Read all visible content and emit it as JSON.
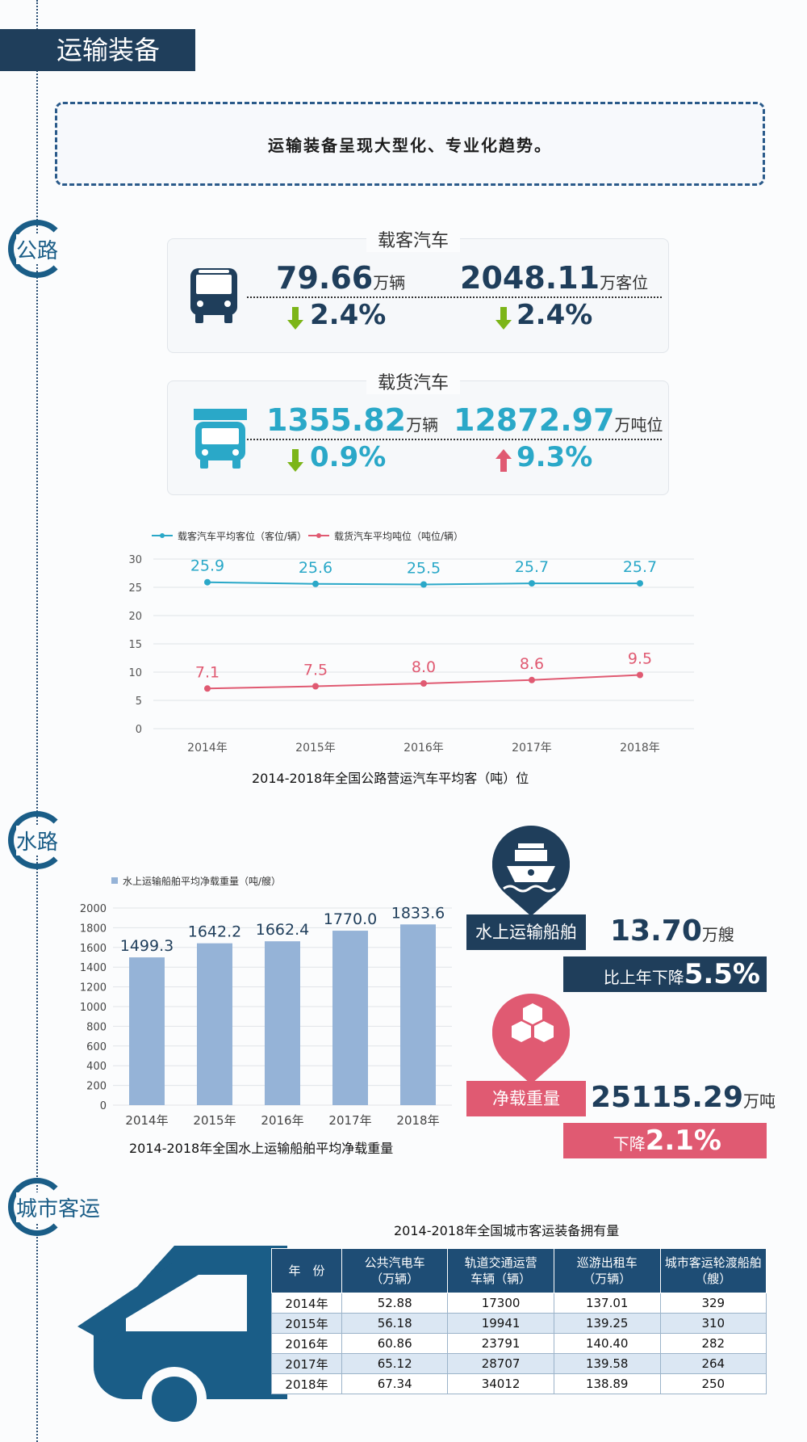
{
  "header": {
    "title": "运输装备"
  },
  "intro": "运输装备呈现大型化、专业化趋势。",
  "sections": {
    "road": "公路",
    "water": "水路",
    "city": "城市客运"
  },
  "bus_card": {
    "title": "载客汽车",
    "v1": "79.66",
    "u1": "万辆",
    "p1": "2.4%",
    "v2": "2048.11",
    "u2": "万客位",
    "p2": "2.4%"
  },
  "truck_card": {
    "title": "载货汽车",
    "v1": "1355.82",
    "u1": "万辆",
    "p1": "0.9%",
    "v2": "12872.97",
    "u2": "万吨位",
    "p2": "9.3%"
  },
  "ship_stats": {
    "label": "水上运输船舶",
    "value": "13.70",
    "unit": "万艘",
    "change_prefix": "比上年下降",
    "change": "5.5%"
  },
  "load_stats": {
    "label": "净载重量",
    "value": "25115.29",
    "unit": "万吨",
    "change_prefix": "下降",
    "change": "2.1%"
  },
  "colors": {
    "navy": "#1f3e5b",
    "teal": "#2aa8c8",
    "red": "#e05a72",
    "green": "#7cb518",
    "bar": "#95b3d7"
  },
  "chart_data": [
    {
      "type": "line",
      "caption": "2014-2018年全国公路营运汽车平均客（吨）位",
      "categories": [
        "2014年",
        "2015年",
        "2016年",
        "2017年",
        "2018年"
      ],
      "series": [
        {
          "name": "载客汽车平均客位（客位/辆）",
          "values": [
            25.9,
            25.6,
            25.5,
            25.7,
            25.7
          ],
          "color": "#2aa8c8"
        },
        {
          "name": "载货汽车平均吨位（吨位/辆）",
          "values": [
            7.1,
            7.5,
            8.0,
            8.6,
            9.5
          ],
          "color": "#e05a72"
        }
      ],
      "ylim": [
        0,
        30
      ],
      "yticks": [
        0,
        5,
        10,
        15,
        20,
        25,
        30
      ],
      "labels": {
        "s0": [
          "25.9",
          "25.6",
          "25.5",
          "25.7",
          "25.7"
        ],
        "s1": [
          "7.1",
          "7.5",
          "8.0",
          "8.6",
          "9.5"
        ]
      }
    },
    {
      "type": "bar",
      "caption": "2014-2018年全国水上运输船舶平均净载重量",
      "legend": "水上运输船舶平均净载重量（吨/艘）",
      "categories": [
        "2014年",
        "2015年",
        "2016年",
        "2017年",
        "2018年"
      ],
      "values": [
        1499.3,
        1642.2,
        1662.4,
        1770.0,
        1833.6
      ],
      "value_labels": [
        "1499.3",
        "1642.2",
        "1662.4",
        "1770.0",
        "1833.6"
      ],
      "ylim": [
        0,
        2000
      ],
      "yticks": [
        0,
        200,
        400,
        600,
        800,
        1000,
        1200,
        1400,
        1600,
        1800,
        2000
      ]
    },
    {
      "type": "table",
      "caption": "2014-2018年全国城市客运装备拥有量",
      "headers": [
        [
          "年　份"
        ],
        [
          "公共汽电车",
          "（万辆）"
        ],
        [
          "轨道交通运营",
          "车辆（辆）"
        ],
        [
          "巡游出租车",
          "（万辆）"
        ],
        [
          "城市客运轮渡船舶",
          "（艘）"
        ]
      ],
      "rows": [
        [
          "2014年",
          "52.88",
          "17300",
          "137.01",
          "329"
        ],
        [
          "2015年",
          "56.18",
          "19941",
          "139.25",
          "310"
        ],
        [
          "2016年",
          "60.86",
          "23791",
          "140.40",
          "282"
        ],
        [
          "2017年",
          "65.12",
          "28707",
          "139.58",
          "264"
        ],
        [
          "2018年",
          "67.34",
          "34012",
          "138.89",
          "250"
        ]
      ]
    }
  ]
}
